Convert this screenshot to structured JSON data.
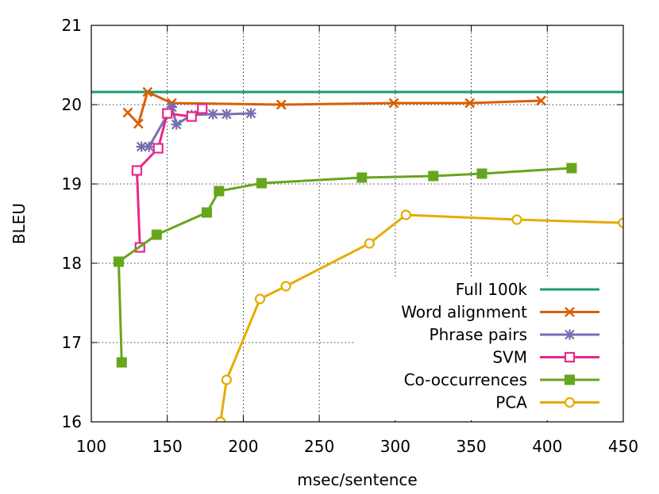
{
  "chart_data": {
    "type": "line",
    "title": "",
    "xlabel": "msec/sentence",
    "ylabel": "BLEU",
    "xlim": [
      100,
      450
    ],
    "ylim": [
      16,
      21
    ],
    "xticks": [
      100,
      150,
      200,
      250,
      300,
      350,
      400,
      450
    ],
    "yticks": [
      16,
      17,
      18,
      19,
      20,
      21
    ],
    "xtick_labels": [
      "100",
      "150",
      "200",
      "250",
      "300",
      "350",
      "400",
      "450"
    ],
    "ytick_labels": [
      "16",
      "17",
      "18",
      "19",
      "20",
      "21"
    ],
    "grid": "dotted",
    "legend_position": "bottom-right",
    "series": [
      {
        "name": "Full 100k",
        "color": "#1a9e77",
        "marker": "none",
        "x": [
          100,
          450
        ],
        "y": [
          20.16,
          20.16
        ]
      },
      {
        "name": "Word alignment",
        "color": "#d95f02",
        "marker": "x",
        "x": [
          124,
          131,
          137,
          153,
          225,
          299,
          349,
          396
        ],
        "y": [
          19.9,
          19.76,
          20.16,
          20.02,
          20.0,
          20.02,
          20.02,
          20.05
        ]
      },
      {
        "name": "Phrase pairs",
        "color": "#7570b3",
        "marker": "asterisk",
        "x": [
          133,
          138,
          153,
          156,
          166,
          180,
          189,
          205
        ],
        "y": [
          19.47,
          19.47,
          19.97,
          19.75,
          19.87,
          19.88,
          19.88,
          19.89
        ]
      },
      {
        "name": "SVM",
        "color": "#e7298a",
        "marker": "open-square",
        "x": [
          132,
          130,
          144,
          150,
          166,
          173
        ],
        "y": [
          18.2,
          19.17,
          19.45,
          19.89,
          19.85,
          19.95
        ]
      },
      {
        "name": "Co-occurrences",
        "color": "#66a61e",
        "marker": "filled-square",
        "x": [
          120,
          118,
          143,
          176,
          184,
          212,
          278,
          325,
          357,
          416
        ],
        "y": [
          16.75,
          18.02,
          18.36,
          18.64,
          18.91,
          19.01,
          19.08,
          19.1,
          19.13,
          19.2
        ]
      },
      {
        "name": "PCA",
        "color": "#e6ab02",
        "marker": "open-circle",
        "x": [
          185,
          189,
          211,
          228,
          283,
          307,
          380,
          450
        ],
        "y": [
          16.0,
          16.53,
          17.55,
          17.71,
          18.25,
          18.61,
          18.55,
          18.51
        ]
      }
    ]
  }
}
